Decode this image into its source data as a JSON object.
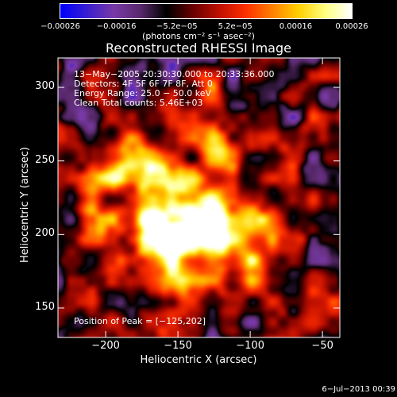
{
  "chart_data": {
    "type": "heatmap",
    "title": "Reconstructed RHESSI Image",
    "xlabel": "Heliocentric X (arcsec)",
    "ylabel": "Heliocentric Y (arcsec)",
    "xlim": [
      -233,
      -38
    ],
    "ylim": [
      130,
      320
    ],
    "x_ticks": [
      "−200",
      "−150",
      "−100",
      "−50"
    ],
    "x_tick_values": [
      -200,
      -150,
      -100,
      -50
    ],
    "y_ticks": [
      "150",
      "200",
      "250",
      "300"
    ],
    "y_tick_values": [
      150,
      200,
      250,
      300
    ],
    "colorbar": {
      "label": "(photons cm⁻² s⁻¹ asec⁻²)",
      "range": [
        -0.00026,
        0.00026
      ],
      "ticks": [
        "−0.00026",
        "−0.00016",
        "−5.2e−05",
        "5.2e−05",
        "0.00016",
        "0.00026"
      ],
      "tick_values": [
        -0.00026,
        -0.00016,
        -5.2e-05,
        5.2e-05,
        0.00016,
        0.00026
      ],
      "colormap": [
        "#0000ff",
        "#3a1fd0",
        "#7a3aa8",
        "#5a2a6e",
        "#000000",
        "#6a0000",
        "#c01000",
        "#ff3000",
        "#ff8000",
        "#ffd000",
        "#ffff80",
        "#ffffff"
      ]
    },
    "annotations": [
      "13−May−2005 20:30:30.000 to 20:33:36.000",
      "Detectors: 4F 5F 6F 7F 8F, Att 0",
      "Energy Range: 25.0 − 50.0 keV",
      "Clean     Total counts: 5.46E+03"
    ],
    "peak_label": "Position of Peak = [−125,202]",
    "peak": [
      -125,
      202
    ],
    "sources": [
      {
        "x": -125,
        "y": 202,
        "intensity": 1.0,
        "width": 18
      },
      {
        "x": -150,
        "y": 215,
        "intensity": 0.85,
        "width": 18
      },
      {
        "x": -175,
        "y": 240,
        "intensity": 0.75,
        "width": 16
      },
      {
        "x": -195,
        "y": 250,
        "intensity": 0.6,
        "width": 14
      },
      {
        "x": -170,
        "y": 200,
        "intensity": 0.8,
        "width": 14
      },
      {
        "x": -120,
        "y": 260,
        "intensity": 0.7,
        "width": 14
      },
      {
        "x": -95,
        "y": 210,
        "intensity": 0.55,
        "width": 13
      },
      {
        "x": -105,
        "y": 175,
        "intensity": 0.45,
        "width": 12
      },
      {
        "x": -150,
        "y": 170,
        "intensity": 0.5,
        "width": 12
      },
      {
        "x": -210,
        "y": 210,
        "intensity": 0.4,
        "width": 12
      },
      {
        "x": -80,
        "y": 245,
        "intensity": 0.3,
        "width": 10
      },
      {
        "x": -60,
        "y": 205,
        "intensity": 0.35,
        "width": 10
      },
      {
        "x": -130,
        "y": 295,
        "intensity": 0.25,
        "width": 12
      },
      {
        "x": -195,
        "y": 165,
        "intensity": 0.3,
        "width": 12
      }
    ]
  },
  "footer": {
    "date": "6−Jul−2013 00:39"
  }
}
